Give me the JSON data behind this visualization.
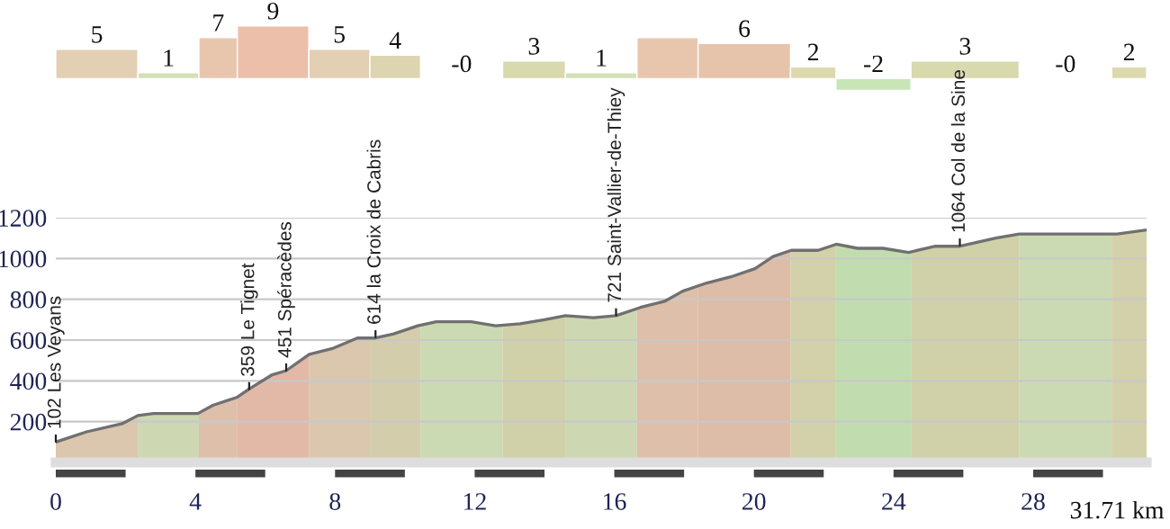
{
  "chart_data": [
    {
      "type": "bar",
      "x": [
        1.175,
        3.225,
        4.65,
        6.225,
        8.125,
        9.725,
        11.625,
        13.7,
        15.625,
        17.525,
        19.725,
        21.7,
        23.425,
        26.05,
        28.925,
        30.75
      ],
      "xlim": [
        0,
        31.25
      ],
      "values": [
        5,
        1,
        7,
        9,
        5,
        4,
        -0.2,
        3,
        1,
        7,
        6,
        2,
        -2,
        3,
        -0.2,
        2
      ],
      "value_labels": [
        "5",
        "1",
        "7",
        "9",
        "5",
        "4",
        "-0",
        "3",
        "1",
        null,
        "6",
        "2",
        "-2",
        "3",
        "-0",
        "2"
      ],
      "colors": [
        "#e3cfb3",
        "#d5e0b8",
        "#e8c6ae",
        "#ecbfab",
        "#e3cfb3",
        "#ddd5b0",
        "#dfe9d2",
        "#d8d9ad",
        "#d5e0b8",
        "#e8c6ae",
        "#e6c4ac",
        "#dcd9af",
        "#c8e6b5",
        "#d8d9ad",
        "#dfe9d2",
        "#dcd9af"
      ],
      "tick_labels": false
    },
    {
      "type": "area",
      "xlim": [
        0,
        31.25
      ],
      "ylim": [
        0,
        1200
      ],
      "xticks": [
        0,
        4,
        8,
        12,
        16,
        20,
        24,
        28
      ],
      "yticks": [
        200,
        400,
        600,
        800,
        1000,
        1200
      ],
      "grid": "y",
      "series": [
        {
          "color": "#707070",
          "x": [
            0,
            0.88,
            1.9,
            2.35,
            2.8,
            4.07,
            4.5,
            5.2,
            5.54,
            6.2,
            6.6,
            7.26,
            7.95,
            8.64,
            9.16,
            9.68,
            10.37,
            10.9,
            11.9,
            12.6,
            13.3,
            14.0,
            14.6,
            15.4,
            16.05,
            16.75,
            17.44,
            17.96,
            18.65,
            19.34,
            20.03,
            20.55,
            21.07,
            21.84,
            22.36,
            22.97,
            23.7,
            24.43,
            25.2,
            25.9,
            26.93,
            27.6,
            28.47,
            29.5,
            30.4,
            31.25
          ],
          "values": [
            100,
            150,
            190,
            230,
            240,
            240,
            280,
            320,
            360,
            430,
            450,
            530,
            560,
            610,
            610,
            630,
            670,
            690,
            690,
            670,
            680,
            700,
            720,
            710,
            720,
            760,
            790,
            840,
            880,
            910,
            950,
            1010,
            1040,
            1040,
            1070,
            1050,
            1050,
            1030,
            1060,
            1060,
            1100,
            1120,
            1120,
            1120,
            1120,
            1140
          ]
        }
      ],
      "bands": [
        {
          "axis": "x",
          "from": 0,
          "to": 2.35,
          "color": "#e3cfb3"
        },
        {
          "axis": "x",
          "from": 2.35,
          "to": 4.1,
          "color": "#d5e0b8"
        },
        {
          "axis": "x",
          "from": 4.1,
          "to": 5.2,
          "color": "#e8c6ae"
        },
        {
          "axis": "x",
          "from": 5.2,
          "to": 7.25,
          "color": "#ecbfab"
        },
        {
          "axis": "x",
          "from": 7.25,
          "to": 9.0,
          "color": "#e3cfb3"
        },
        {
          "axis": "x",
          "from": 9.0,
          "to": 10.45,
          "color": "#ddd5b0"
        },
        {
          "axis": "x",
          "from": 10.45,
          "to": 12.8,
          "color": "#d3e3b8"
        },
        {
          "axis": "x",
          "from": 12.8,
          "to": 14.6,
          "color": "#d8d9ad"
        },
        {
          "axis": "x",
          "from": 14.6,
          "to": 16.65,
          "color": "#d5e0b8"
        },
        {
          "axis": "x",
          "from": 16.65,
          "to": 18.4,
          "color": "#e8c6ae"
        },
        {
          "axis": "x",
          "from": 18.4,
          "to": 21.05,
          "color": "#e6c4ac"
        },
        {
          "axis": "x",
          "from": 21.05,
          "to": 22.35,
          "color": "#dcd9af"
        },
        {
          "axis": "x",
          "from": 22.35,
          "to": 24.5,
          "color": "#c8e6b5"
        },
        {
          "axis": "x",
          "from": 24.5,
          "to": 27.6,
          "color": "#d8d9ad"
        },
        {
          "axis": "x",
          "from": 27.6,
          "to": 30.25,
          "color": "#d3e3b8"
        },
        {
          "axis": "x",
          "from": 30.25,
          "to": 31.25,
          "color": "#dcd9af"
        }
      ],
      "annotations": [
        {
          "text": "102 Les Veyans",
          "x": 0,
          "y": 102
        },
        {
          "text": "359 Le Tignet",
          "x": 5.54,
          "y": 359
        },
        {
          "text": "451 Spéracèdes",
          "x": 6.6,
          "y": 451
        },
        {
          "text": "614 la Croix de Cabris",
          "x": 9.16,
          "y": 614
        },
        {
          "text": "721 Saint-Vallier-de-Thiey",
          "x": 16.05,
          "y": 721
        },
        {
          "text": "1064 Col de la Sine",
          "x": 25.9,
          "y": 1064
        },
        "31.71 km"
      ]
    }
  ]
}
